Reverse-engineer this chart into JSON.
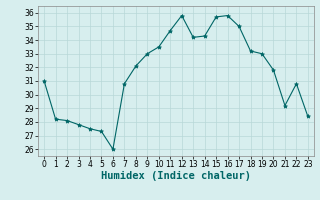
{
  "x": [
    0,
    1,
    2,
    3,
    4,
    5,
    6,
    7,
    8,
    9,
    10,
    11,
    12,
    13,
    14,
    15,
    16,
    17,
    18,
    19,
    20,
    21,
    22,
    23
  ],
  "y": [
    31,
    28.2,
    28.1,
    27.8,
    27.5,
    27.3,
    26.0,
    30.8,
    32.1,
    33.0,
    33.5,
    34.7,
    35.8,
    34.2,
    34.3,
    35.7,
    35.8,
    35.0,
    33.2,
    33.0,
    31.8,
    29.2,
    30.8,
    28.4
  ],
  "line_color": "#006666",
  "marker": "*",
  "marker_size": 3,
  "bg_color": "#d7eeee",
  "grid_color": "#b8d8d8",
  "xlabel": "Humidex (Indice chaleur)",
  "xlim": [
    -0.5,
    23.5
  ],
  "ylim": [
    25.5,
    36.5
  ],
  "yticks": [
    26,
    27,
    28,
    29,
    30,
    31,
    32,
    33,
    34,
    35,
    36
  ],
  "xticks": [
    0,
    1,
    2,
    3,
    4,
    5,
    6,
    7,
    8,
    9,
    10,
    11,
    12,
    13,
    14,
    15,
    16,
    17,
    18,
    19,
    20,
    21,
    22,
    23
  ],
  "tick_fontsize": 5.5,
  "xlabel_fontsize": 7.5
}
